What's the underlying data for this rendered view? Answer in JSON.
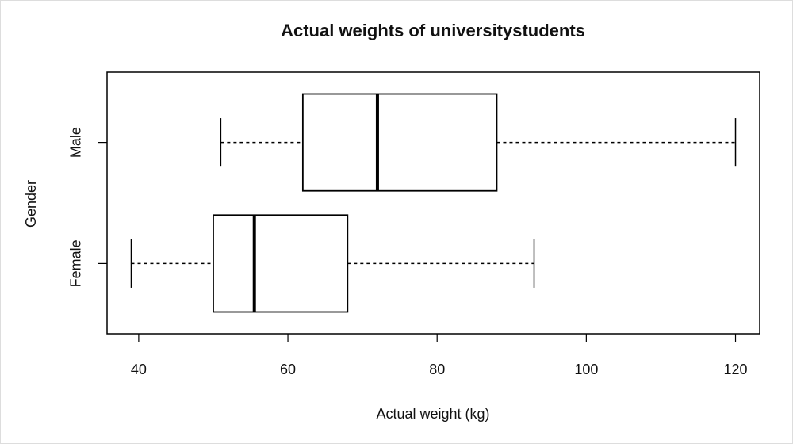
{
  "chart_data": {
    "type": "boxplot",
    "title": "Actual weights of universitystudents",
    "x_label": "Actual weight (kg)",
    "y_label": "Gender",
    "categories": [
      "Female",
      "Male"
    ],
    "boxes": [
      {
        "min": 39,
        "q1": 50,
        "median": 55.5,
        "q3": 68,
        "max": 93
      },
      {
        "min": 51,
        "q1": 62,
        "median": 72,
        "q3": 88,
        "max": 120
      }
    ],
    "xlim": [
      35.76,
      123.24
    ],
    "xticks": [
      40,
      60,
      80,
      100,
      120
    ]
  }
}
